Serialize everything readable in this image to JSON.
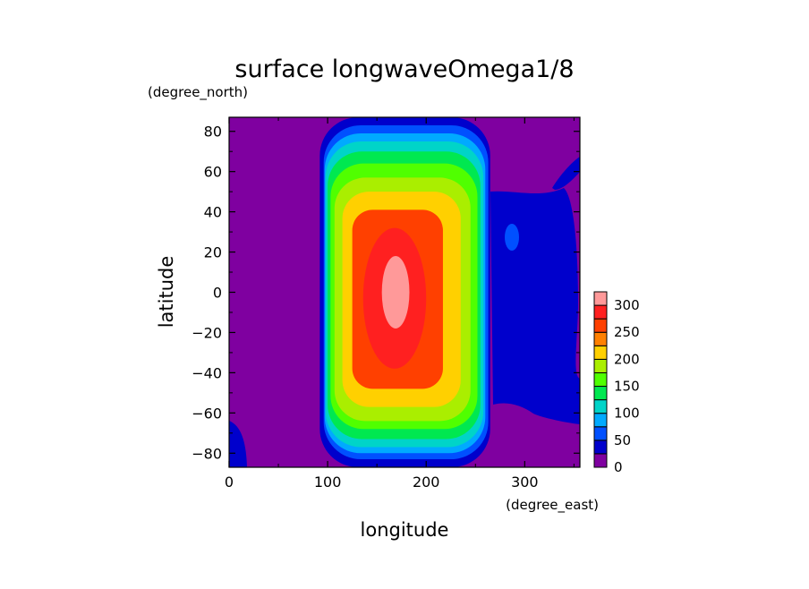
{
  "chart_data": {
    "type": "heatmap",
    "title": "surface longwaveOmega1/8",
    "xlabel": "longitude",
    "ylabel": "latitude",
    "xunit": "(degree_east)",
    "yunit": "(degree_north)",
    "xlim": [
      0,
      356
    ],
    "ylim": [
      -87,
      87
    ],
    "xticks": [
      0,
      100,
      200,
      300
    ],
    "yticks": [
      -80,
      -60,
      -40,
      -20,
      0,
      20,
      40,
      60,
      80
    ],
    "colorbar": {
      "levels": [
        0,
        25,
        50,
        75,
        100,
        125,
        150,
        175,
        200,
        225,
        250,
        275,
        300
      ],
      "tick_labels": [
        0,
        50,
        100,
        150,
        200,
        250,
        300
      ],
      "colors": [
        "#7F00A0",
        "#0000CC",
        "#0050FF",
        "#00AAFF",
        "#00D4C8",
        "#00E850",
        "#50FF00",
        "#AAEE00",
        "#FFD000",
        "#FF8000",
        "#FF4000",
        "#FF2020",
        "#FF9999"
      ]
    },
    "field": {
      "description_values": "Contour bands of surface longwave flux; maximum near lon 170, lat 0.",
      "max": {
        "lon": 170,
        "lat": 0,
        "value": 300
      },
      "bands": [
        {
          "value_min": 275,
          "value_max": 300,
          "color": "#FF9999",
          "lon_range": [
            155,
            183
          ],
          "lat_range": [
            -18,
            18
          ]
        },
        {
          "value_min": 250,
          "value_max": 275,
          "color": "#FF2020",
          "lon_range": [
            136,
            200
          ],
          "lat_range": [
            -38,
            32
          ]
        },
        {
          "value_min": 225,
          "value_max": 250,
          "color": "#FF4000",
          "lon_range": [
            125,
            217
          ],
          "lat_range": [
            -48,
            41
          ]
        },
        {
          "value_min": 200,
          "value_max": 225,
          "color": "#FFD000",
          "lon_range": [
            115,
            235
          ],
          "lat_range": [
            -57,
            50
          ]
        },
        {
          "value_min": 175,
          "value_max": 200,
          "color": "#AAEE00",
          "lon_range": [
            107,
            245
          ],
          "lat_range": [
            -64,
            57
          ]
        },
        {
          "value_min": 150,
          "value_max": 175,
          "color": "#50FF00",
          "lon_range": [
            103,
            252
          ],
          "lat_range": [
            -68,
            64
          ]
        },
        {
          "value_min": 125,
          "value_max": 150,
          "color": "#00E850",
          "lon_range": [
            100,
            255
          ],
          "lat_range": [
            -73,
            70
          ]
        },
        {
          "value_min": 100,
          "value_max": 125,
          "color": "#00D4C8",
          "lon_range": [
            98,
            258
          ],
          "lat_range": [
            -77,
            75
          ]
        },
        {
          "value_min": 75,
          "value_max": 100,
          "color": "#00AAFF",
          "lon_range": [
            97,
            260
          ],
          "lat_range": [
            -80,
            79
          ]
        },
        {
          "value_min": 50,
          "value_max": 75,
          "color": "#0050FF",
          "lon_range": [
            96,
            263
          ],
          "lat_range": [
            -83,
            83
          ]
        },
        {
          "value_min": 25,
          "value_max": 50,
          "color": "#0000CC",
          "lon_range": [
            92,
            265
          ],
          "lat_range": [
            -87,
            87
          ]
        }
      ]
    }
  }
}
